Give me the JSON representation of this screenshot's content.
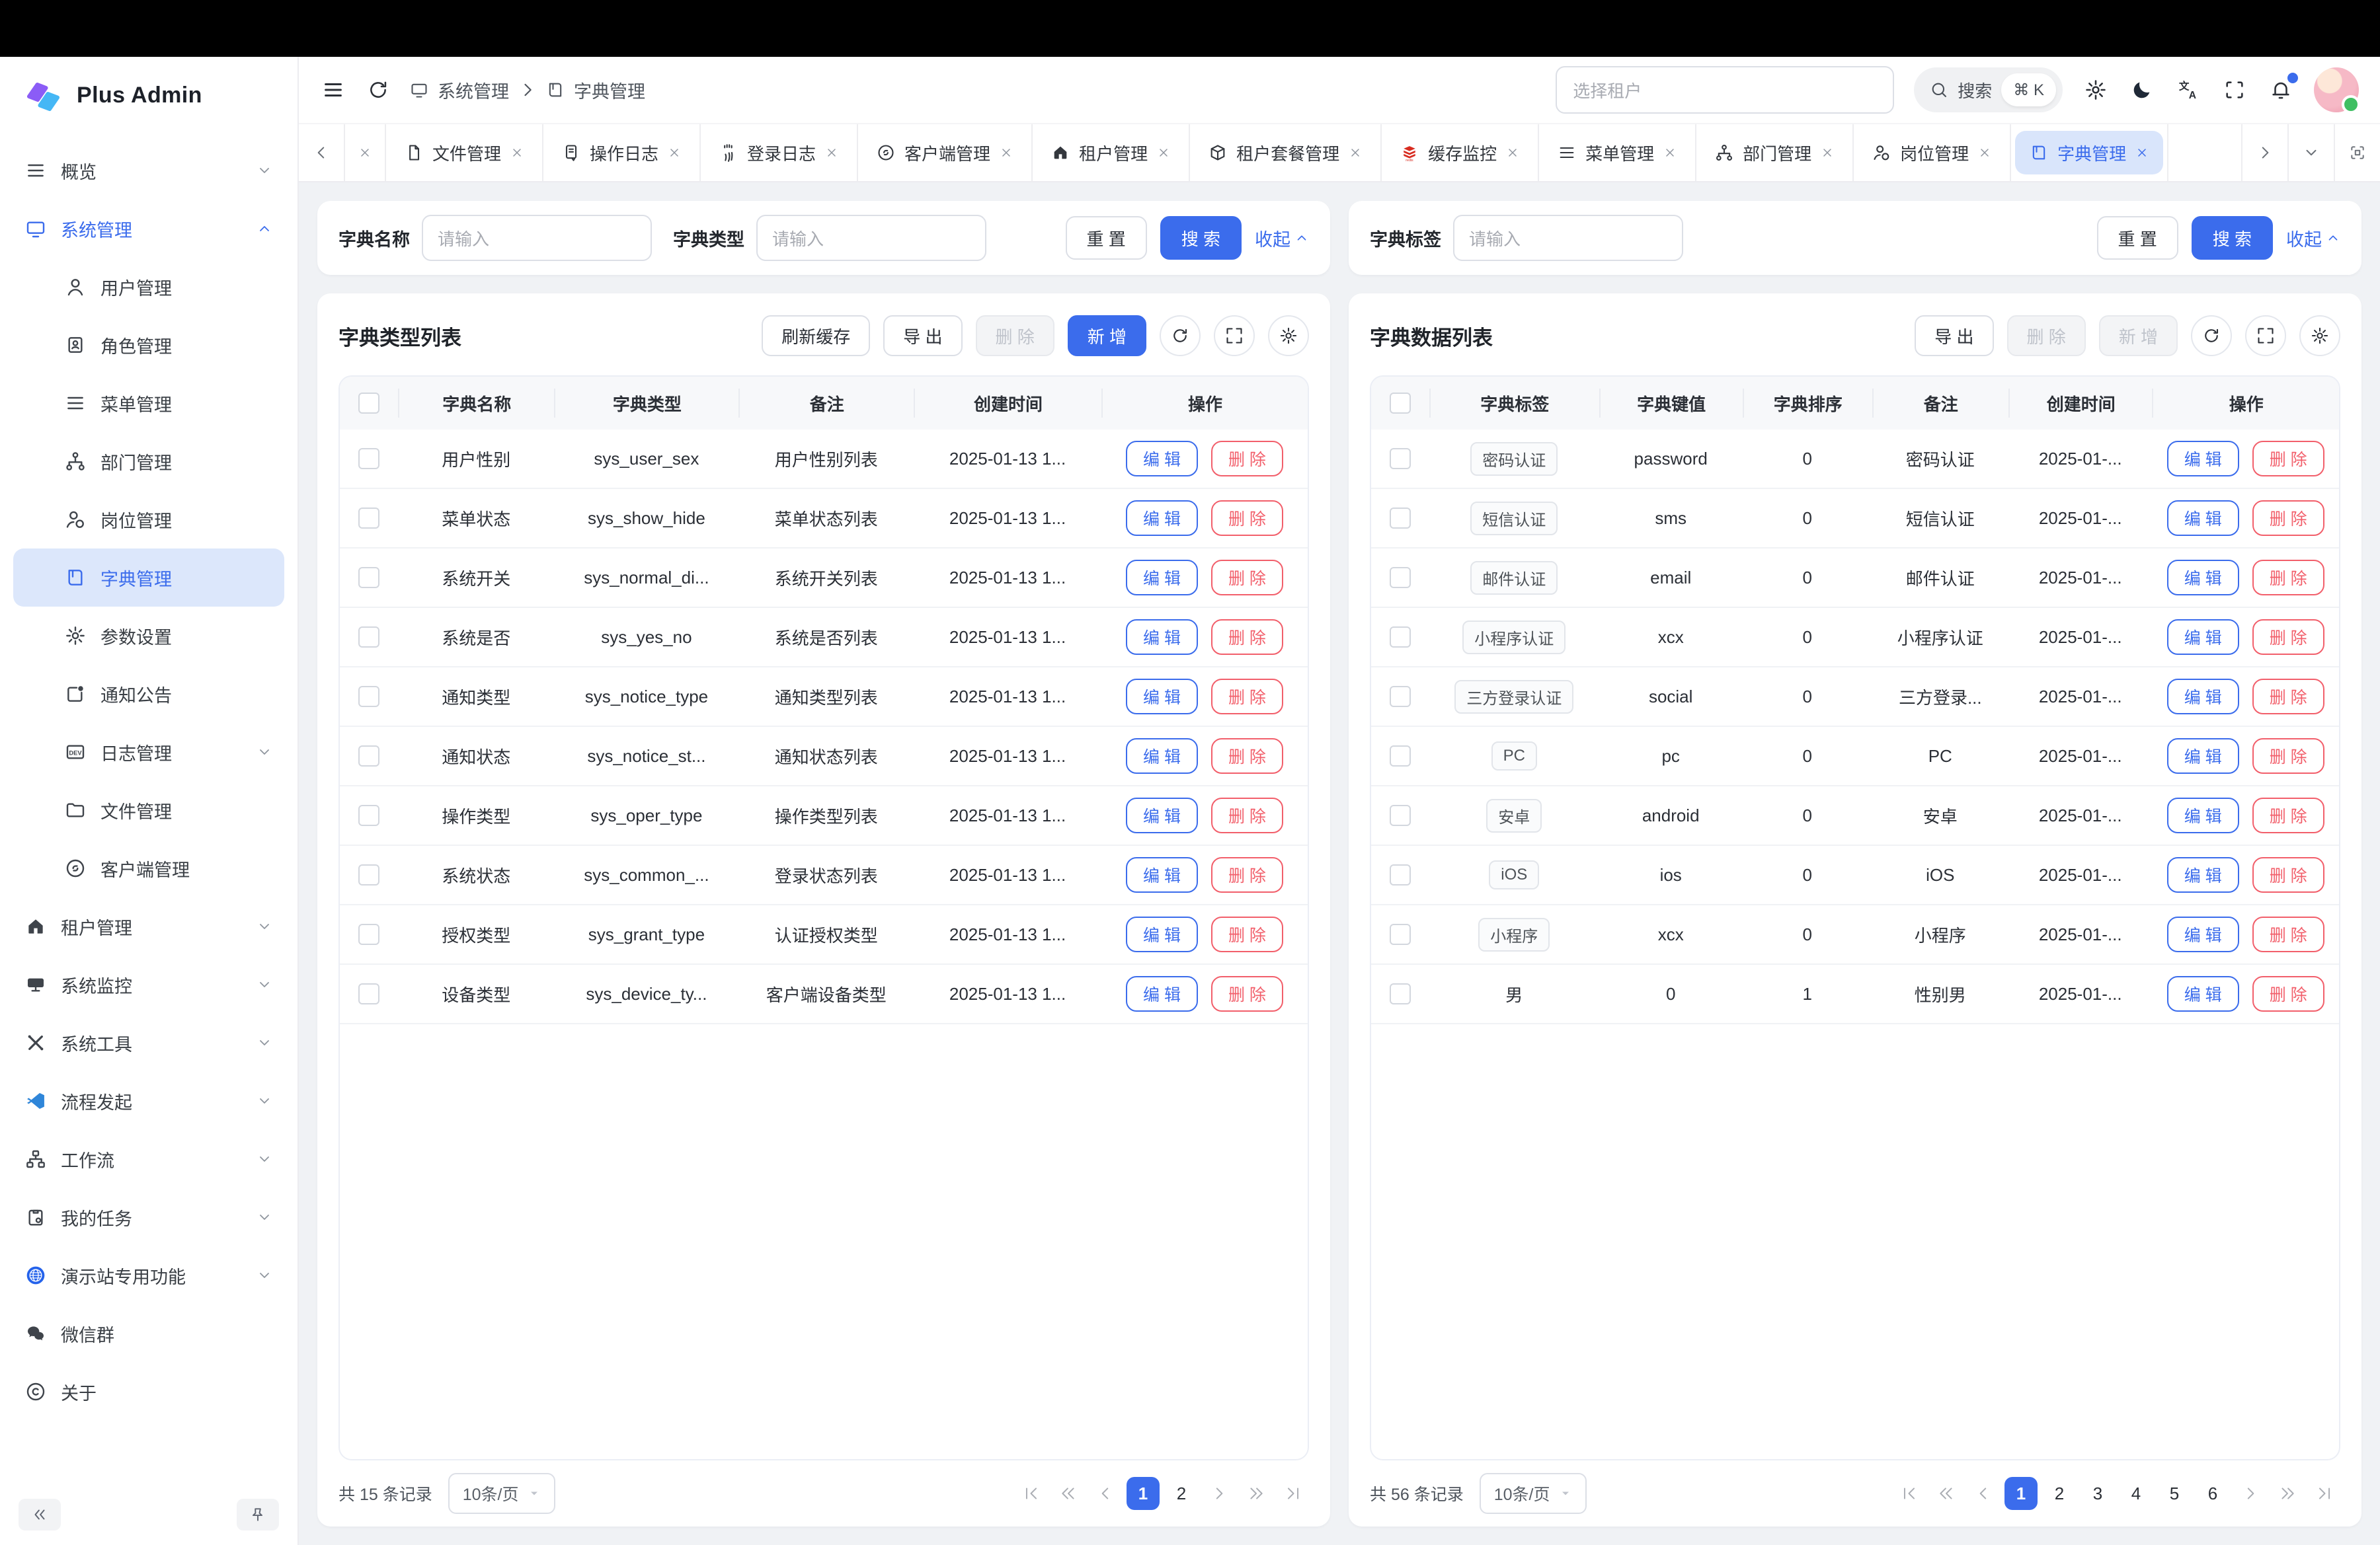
{
  "colors": {
    "primary": "#3b6cec",
    "primary_light": "#dce7fb",
    "danger": "#f25f6b",
    "page_bg": "#f0f2f5"
  },
  "brand": {
    "name": "Plus Admin"
  },
  "topbar": {
    "breadcrumb": [
      {
        "label": "系统管理",
        "icon": "monitor"
      },
      {
        "label": "字典管理",
        "icon": "book"
      }
    ],
    "tenant_placeholder": "选择租户",
    "search_label": "搜索",
    "search_shortcut": "⌘ K"
  },
  "tabbar": {
    "tabs": [
      {
        "id": "file-mgmt",
        "label": "文件管理",
        "icon": "doc"
      },
      {
        "id": "oper-log",
        "label": "操作日志",
        "icon": "log"
      },
      {
        "id": "login-log",
        "label": "登录日志",
        "icon": "fingerprint"
      },
      {
        "id": "client-mgmt",
        "label": "客户端管理",
        "icon": "link"
      },
      {
        "id": "tenant-mgmt",
        "label": "租户管理",
        "icon": "home"
      },
      {
        "id": "tenant-package-mgmt",
        "label": "租户套餐管理",
        "icon": "box"
      },
      {
        "id": "cache-monitor",
        "label": "缓存监控",
        "icon": "redis"
      },
      {
        "id": "menu-mgmt",
        "label": "菜单管理",
        "icon": "menu"
      },
      {
        "id": "dept-mgmt",
        "label": "部门管理",
        "icon": "tree"
      },
      {
        "id": "post-mgmt",
        "label": "岗位管理",
        "icon": "user-badge"
      },
      {
        "id": "dict-mgmt",
        "label": "字典管理",
        "icon": "book",
        "active": true
      }
    ]
  },
  "sidebar": {
    "items": [
      {
        "id": "overview",
        "label": "概览",
        "icon": "menu",
        "chevron": "down"
      },
      {
        "id": "system-mgmt",
        "label": "系统管理",
        "icon": "monitor",
        "chevron": "up",
        "active": true,
        "children": [
          {
            "id": "user-mgmt",
            "label": "用户管理",
            "icon": "user"
          },
          {
            "id": "role-mgmt",
            "label": "角色管理",
            "icon": "role"
          },
          {
            "id": "menu-mgmt",
            "label": "菜单管理",
            "icon": "menu"
          },
          {
            "id": "dept-mgmt",
            "label": "部门管理",
            "icon": "tree"
          },
          {
            "id": "post-mgmt",
            "label": "岗位管理",
            "icon": "user-badge"
          },
          {
            "id": "dict-mgmt",
            "label": "字典管理",
            "icon": "book",
            "active": true
          },
          {
            "id": "param-settings",
            "label": "参数设置",
            "icon": "gear"
          },
          {
            "id": "notice",
            "label": "通知公告",
            "icon": "notice"
          },
          {
            "id": "log-mgmt",
            "label": "日志管理",
            "icon": "dev",
            "chevron": "down"
          },
          {
            "id": "file-mgmt",
            "label": "文件管理",
            "icon": "folder"
          },
          {
            "id": "client-mgmt",
            "label": "客户端管理",
            "icon": "link"
          }
        ]
      },
      {
        "id": "tenant-mgmt",
        "label": "租户管理",
        "icon": "home",
        "chevron": "down"
      },
      {
        "id": "system-monitor",
        "label": "系统监控",
        "icon": "display",
        "chevron": "down"
      },
      {
        "id": "system-tools",
        "label": "系统工具",
        "icon": "tools",
        "chevron": "down"
      },
      {
        "id": "process-start",
        "label": "流程发起",
        "icon": "vscode",
        "chevron": "down"
      },
      {
        "id": "workflow",
        "label": "工作流",
        "icon": "workflow",
        "chevron": "down"
      },
      {
        "id": "my-tasks",
        "label": "我的任务",
        "icon": "clipboard",
        "chevron": "down"
      },
      {
        "id": "demo-features",
        "label": "演示站专用功能",
        "icon": "globe",
        "chevron": "down"
      },
      {
        "id": "wechat-group",
        "label": "微信群",
        "icon": "wechat"
      },
      {
        "id": "about",
        "label": "关于",
        "icon": "copyright"
      }
    ]
  },
  "left_panel": {
    "search": {
      "fields": [
        {
          "label": "字典名称",
          "placeholder": "请输入"
        },
        {
          "label": "字典类型",
          "placeholder": "请输入"
        }
      ],
      "reset": "重 置",
      "submit": "搜 索",
      "collapse": "收起"
    },
    "title": "字典类型列表",
    "toolbar": {
      "refresh_cache": "刷新缓存",
      "export": "导 出",
      "delete": "删 除",
      "add": "新 增"
    },
    "columns": [
      "字典名称",
      "字典类型",
      "备注",
      "创建时间",
      "操作"
    ],
    "actions": {
      "edit": "编 辑",
      "delete": "删 除"
    },
    "rows": [
      {
        "name": "用户性别",
        "type": "sys_user_sex",
        "remark": "用户性别列表",
        "time": "2025-01-13 1..."
      },
      {
        "name": "菜单状态",
        "type": "sys_show_hide",
        "remark": "菜单状态列表",
        "time": "2025-01-13 1..."
      },
      {
        "name": "系统开关",
        "type": "sys_normal_di...",
        "remark": "系统开关列表",
        "time": "2025-01-13 1..."
      },
      {
        "name": "系统是否",
        "type": "sys_yes_no",
        "remark": "系统是否列表",
        "time": "2025-01-13 1..."
      },
      {
        "name": "通知类型",
        "type": "sys_notice_type",
        "remark": "通知类型列表",
        "time": "2025-01-13 1..."
      },
      {
        "name": "通知状态",
        "type": "sys_notice_st...",
        "remark": "通知状态列表",
        "time": "2025-01-13 1..."
      },
      {
        "name": "操作类型",
        "type": "sys_oper_type",
        "remark": "操作类型列表",
        "time": "2025-01-13 1..."
      },
      {
        "name": "系统状态",
        "type": "sys_common_...",
        "remark": "登录状态列表",
        "time": "2025-01-13 1..."
      },
      {
        "name": "授权类型",
        "type": "sys_grant_type",
        "remark": "认证授权类型",
        "time": "2025-01-13 1..."
      },
      {
        "name": "设备类型",
        "type": "sys_device_ty...",
        "remark": "客户端设备类型",
        "time": "2025-01-13 1..."
      }
    ],
    "pagination": {
      "total": "共 15 条记录",
      "page_size": "10条/页",
      "pages": [
        "1",
        "2"
      ],
      "active": "1"
    }
  },
  "right_panel": {
    "search": {
      "fields": [
        {
          "label": "字典标签",
          "placeholder": "请输入"
        }
      ],
      "reset": "重 置",
      "submit": "搜 索",
      "collapse": "收起"
    },
    "title": "字典数据列表",
    "toolbar": {
      "export": "导 出",
      "delete": "删 除",
      "add": "新 增"
    },
    "columns": [
      "字典标签",
      "字典键值",
      "字典排序",
      "备注",
      "创建时间",
      "操作"
    ],
    "actions": {
      "edit": "编 辑",
      "delete": "删 除"
    },
    "rows": [
      {
        "tag": "密码认证",
        "tagged": true,
        "key": "password",
        "sort": "0",
        "remark": "密码认证",
        "time": "2025-01-..."
      },
      {
        "tag": "短信认证",
        "tagged": true,
        "key": "sms",
        "sort": "0",
        "remark": "短信认证",
        "time": "2025-01-..."
      },
      {
        "tag": "邮件认证",
        "tagged": true,
        "key": "email",
        "sort": "0",
        "remark": "邮件认证",
        "time": "2025-01-..."
      },
      {
        "tag": "小程序认证",
        "tagged": true,
        "key": "xcx",
        "sort": "0",
        "remark": "小程序认证",
        "time": "2025-01-..."
      },
      {
        "tag": "三方登录认证",
        "tagged": true,
        "key": "social",
        "sort": "0",
        "remark": "三方登录...",
        "time": "2025-01-..."
      },
      {
        "tag": "PC",
        "tagged": true,
        "key": "pc",
        "sort": "0",
        "remark": "PC",
        "time": "2025-01-..."
      },
      {
        "tag": "安卓",
        "tagged": true,
        "key": "android",
        "sort": "0",
        "remark": "安卓",
        "time": "2025-01-..."
      },
      {
        "tag": "iOS",
        "tagged": true,
        "key": "ios",
        "sort": "0",
        "remark": "iOS",
        "time": "2025-01-..."
      },
      {
        "tag": "小程序",
        "tagged": true,
        "key": "xcx",
        "sort": "0",
        "remark": "小程序",
        "time": "2025-01-..."
      },
      {
        "tag": "男",
        "tagged": false,
        "key": "0",
        "sort": "1",
        "remark": "性别男",
        "time": "2025-01-..."
      }
    ],
    "pagination": {
      "total": "共 56 条记录",
      "page_size": "10条/页",
      "pages": [
        "1",
        "2",
        "3",
        "4",
        "5",
        "6"
      ],
      "active": "1"
    }
  }
}
